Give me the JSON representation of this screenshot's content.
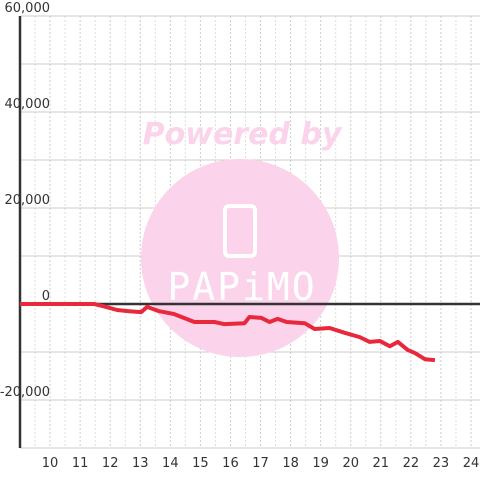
{
  "chart_data": {
    "type": "line",
    "watermark": {
      "text": "Powered by",
      "logo": "PAPiMO"
    },
    "x": [
      9,
      11.47,
      11.8,
      12.23,
      12.63,
      13.03,
      13.23,
      13.63,
      14.13,
      14.8,
      15.47,
      15.8,
      16.47,
      16.63,
      17.03,
      17.3,
      17.57,
      17.87,
      18.47,
      18.8,
      19.3,
      19.8,
      20.3,
      20.63,
      20.97,
      21.3,
      21.57,
      21.9,
      22.13,
      22.47,
      22.8
    ],
    "series": [
      {
        "color": "#e8283c",
        "values": [
          0,
          0,
          -500,
          -1250,
          -1500,
          -1700,
          -600,
          -1500,
          -2100,
          -3750,
          -3750,
          -4200,
          -4000,
          -2700,
          -2900,
          -3750,
          -3100,
          -3750,
          -4000,
          -5200,
          -5000,
          -6000,
          -6900,
          -7900,
          -7700,
          -8800,
          -7900,
          -9600,
          -10200,
          -11500,
          -11700
        ]
      }
    ],
    "xlim": [
      9,
      24.3
    ],
    "xticks": [
      10,
      11,
      12,
      13,
      14,
      15,
      16,
      17,
      18,
      19,
      20,
      21,
      22,
      23,
      24
    ],
    "x_minor_ticks": [
      9.5,
      10.5,
      11.5,
      12.5,
      13.5,
      14.5,
      15.5,
      16.5,
      17.5,
      18.5,
      19.5,
      20.5,
      21.5,
      22.5,
      23.5
    ],
    "ylim": [
      -30000,
      60000
    ],
    "yticks": [
      {
        "value": -20000,
        "label": "-20,000"
      },
      0,
      {
        "value": 20000,
        "label": "20,000"
      },
      {
        "value": 40000,
        "label": "40,000"
      },
      {
        "value": 60000,
        "label": "60,000"
      }
    ],
    "y_minor_ticks": [
      -30000,
      -10000,
      10000,
      30000,
      50000
    ],
    "grid": true
  }
}
